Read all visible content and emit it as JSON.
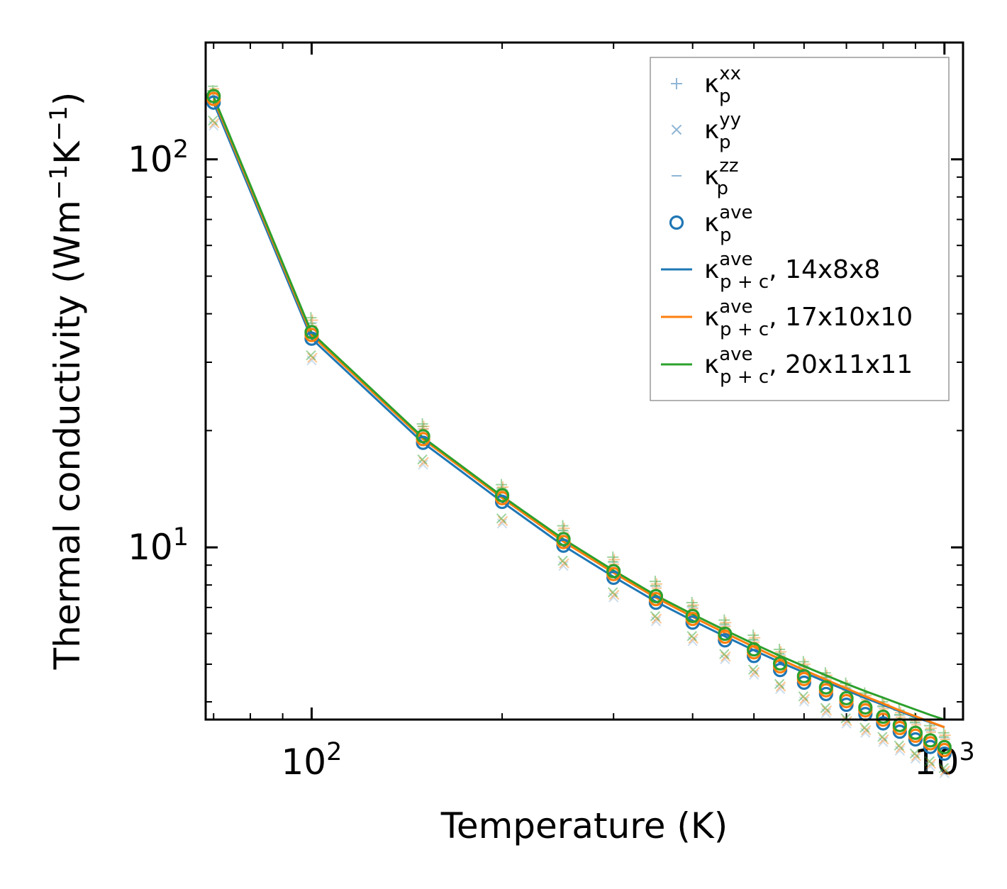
{
  "chart_data": {
    "type": "line",
    "xscale": "log",
    "yscale": "log",
    "xlabel": "Temperature (K)",
    "ylabel": {
      "main": "Thermal conductivity (Wm",
      "exp1": "−1",
      "mid": "K",
      "exp2": "−1",
      "close": ")"
    },
    "xlim": [
      68,
      1070
    ],
    "ylim": [
      3.6,
      200
    ],
    "x_ticks": [
      {
        "value": 100,
        "base": "10",
        "exp": "2"
      },
      {
        "value": 1000,
        "base": "10",
        "exp": "3"
      }
    ],
    "y_ticks": [
      {
        "value": 10,
        "base": "10",
        "exp": "1"
      },
      {
        "value": 100,
        "base": "10",
        "exp": "2"
      }
    ],
    "x": [
      70,
      100,
      150,
      200,
      250,
      300,
      350,
      400,
      450,
      500,
      550,
      600,
      650,
      700,
      750,
      800,
      850,
      900,
      950,
      1000
    ],
    "kxx": [
      148,
      38.5,
      20.5,
      14.3,
      11.2,
      9.3,
      8.05,
      7.1,
      6.4,
      5.85,
      5.38,
      5.0,
      4.68,
      4.4,
      4.15,
      3.94,
      3.75,
      3.58,
      3.42,
      3.28
    ],
    "kyy": [
      124,
      30.8,
      16.6,
      11.7,
      9.1,
      7.55,
      6.55,
      5.82,
      5.23,
      4.77,
      4.38,
      4.07,
      3.8,
      3.57,
      3.38,
      3.2,
      3.04,
      2.9,
      2.77,
      2.66
    ],
    "kzz": [
      152,
      37.2,
      20.2,
      14.0,
      10.9,
      9.05,
      7.85,
      6.95,
      6.25,
      5.7,
      5.25,
      4.88,
      4.56,
      4.28,
      4.05,
      3.84,
      3.65,
      3.49,
      3.34,
      3.2
    ],
    "kave": [
      140,
      34.5,
      18.6,
      13.1,
      10.1,
      8.35,
      7.2,
      6.4,
      5.76,
      5.25,
      4.83,
      4.48,
      4.19,
      3.93,
      3.72,
      3.52,
      3.35,
      3.2,
      3.06,
      2.94
    ],
    "series": [
      {
        "name": "14x8x8",
        "color": "#1f77b4",
        "values": [
          140,
          34.5,
          18.6,
          13.1,
          10.1,
          8.4,
          7.25,
          6.48,
          5.9,
          5.43,
          5.06,
          4.76,
          4.5,
          4.28,
          4.09,
          3.93,
          3.78,
          3.65,
          3.54,
          3.44
        ]
      },
      {
        "name": "17x10x10",
        "color": "#ff7f0e",
        "values": [
          143,
          35.2,
          19.0,
          13.4,
          10.35,
          8.6,
          7.42,
          6.62,
          6.02,
          5.54,
          5.15,
          4.83,
          4.56,
          4.33,
          4.13,
          3.96,
          3.8,
          3.67,
          3.55,
          3.44
        ]
      },
      {
        "name": "20x11x11",
        "color": "#2ca02c",
        "values": [
          145,
          35.7,
          19.2,
          13.55,
          10.5,
          8.72,
          7.52,
          6.72,
          6.12,
          5.64,
          5.25,
          4.94,
          4.68,
          4.45,
          4.26,
          4.1,
          3.95,
          3.82,
          3.7,
          3.6
        ]
      }
    ],
    "colors": {
      "blue": "#1f77b4",
      "orange": "#ff7f0e",
      "green": "#2ca02c",
      "light_blue": "#8fb6d6"
    },
    "legend_position": "top-right",
    "legend": [
      {
        "marker": "plus",
        "symbol": "κ",
        "sub": "p",
        "sup": "xx",
        "suffix": ""
      },
      {
        "marker": "cross",
        "symbol": "κ",
        "sub": "p",
        "sup": "yy",
        "suffix": ""
      },
      {
        "marker": "dash",
        "symbol": "κ",
        "sub": "p",
        "sup": "zz",
        "suffix": ""
      },
      {
        "marker": "circle",
        "symbol": "κ",
        "sub": "p",
        "sup": "ave",
        "suffix": ""
      },
      {
        "marker": "line-blue",
        "symbol": "κ",
        "sub": "p + c",
        "sup": "ave",
        "suffix": ", 14x8x8"
      },
      {
        "marker": "line-orange",
        "symbol": "κ",
        "sub": "p + c",
        "sup": "ave",
        "suffix": ", 17x10x10"
      },
      {
        "marker": "line-green",
        "symbol": "κ",
        "sub": "p + c",
        "sup": "ave",
        "suffix": ", 20x11x11"
      }
    ]
  }
}
